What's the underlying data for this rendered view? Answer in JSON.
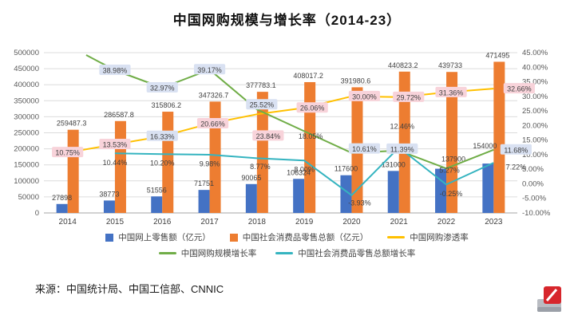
{
  "title": "中国网购规模与增长率（2014-23）",
  "source": "来源：中国统计局、中国工信部、CNNIC",
  "legend": {
    "rows": [
      [
        {
          "label": "中国网上零售额（亿元）",
          "type": "bar",
          "color": "#4472c4"
        },
        {
          "label": "中国社会消费品零售总额（亿元）",
          "type": "bar",
          "color": "#ed7d31"
        },
        {
          "label": "中国网购渗透率",
          "type": "line",
          "color": "#ffc000"
        }
      ],
      [
        {
          "label": "中国网购规模增长率",
          "type": "line",
          "color": "#70ad47"
        },
        {
          "label": "中国社会消费品零售总额增长率",
          "type": "line",
          "color": "#35b4c0"
        }
      ]
    ]
  },
  "chart_data": {
    "type": "combo-bar-line",
    "title": "中国网购规模与增长率（2014-23）",
    "categories": [
      "2014",
      "2015",
      "2016",
      "2017",
      "2018",
      "2019",
      "2020",
      "2021",
      "2022",
      "2023"
    ],
    "left_axis": {
      "min": 0,
      "max": 500000,
      "step": 50000,
      "tick_labels": [
        "500000",
        "450000",
        "400000",
        "350000",
        "300000",
        "250000",
        "200000",
        "150000",
        "100000",
        "50000",
        "0"
      ]
    },
    "right_axis": {
      "min": -10,
      "max": 45,
      "step": 5,
      "tick_labels": [
        "45.00%",
        "40.00%",
        "35.00%",
        "30.00%",
        "25.00%",
        "20.00%",
        "15.00%",
        "10.00%",
        "5.00%",
        "0.00%",
        "-5.00%",
        "-10.00%"
      ]
    },
    "grid": true,
    "bar_series": [
      {
        "name": "中国网上零售额（亿元）",
        "color": "#4472c4",
        "values": [
          27898,
          38773,
          51556,
          71751,
          90065,
          106324,
          117600,
          131000,
          137900,
          154000
        ],
        "labels": [
          "27898",
          "38773",
          "51556",
          "71751",
          "90065",
          "106324",
          "117600",
          "131000",
          "137900",
          "154000"
        ]
      },
      {
        "name": "中国社会消费品零售总额（亿元）",
        "color": "#ed7d31",
        "values": [
          259487.3,
          286587.8,
          315806.2,
          347326.7,
          377783.1,
          408017.2,
          391980.6,
          440823.2,
          439733,
          471495
        ],
        "labels": [
          "259487.3",
          "286587.8",
          "315806.2",
          "347326.7",
          "377783.1",
          "408017.2",
          "391980.6",
          "440823.2",
          "439733",
          "471495"
        ]
      }
    ],
    "line_series": [
      {
        "name": "中国网购渗透率",
        "color": "#ffc000",
        "axis": "right",
        "values": [
          10.75,
          13.53,
          16.33,
          20.66,
          23.84,
          26.06,
          30.0,
          29.72,
          31.36,
          32.66
        ],
        "labels": [
          {
            "text": "10.75%",
            "box": "pink"
          },
          {
            "text": "13.53%",
            "box": "pink"
          },
          {
            "text": "16.33%",
            "box": "lavender"
          },
          {
            "text": "20.66%",
            "box": "pink"
          },
          {
            "text": "23.84%",
            "box": "pink"
          },
          {
            "text": "26.06%",
            "box": "pink"
          },
          {
            "text": "30.00%",
            "box": "pink"
          },
          {
            "text": "29.72%",
            "box": "pink"
          },
          {
            "text": "31.36%",
            "box": "pink"
          },
          {
            "text": "32.66%",
            "box": "pink"
          }
        ]
      },
      {
        "name": "中国网购规模增长率",
        "color": "#70ad47",
        "axis": "right",
        "values": [
          null,
          38.98,
          32.97,
          39.17,
          25.52,
          18.05,
          10.61,
          11.39,
          5.27,
          11.68
        ],
        "labels": [
          null,
          {
            "text": "38.98%",
            "box": "lavender"
          },
          {
            "text": "32.97%",
            "box": "lavender"
          },
          {
            "text": "39.17%",
            "box": "lavender"
          },
          {
            "text": "25.52%",
            "box": "lavender"
          },
          {
            "text": "18.05%",
            "box": null
          },
          {
            "text": "10.61%",
            "box": "lavender"
          },
          {
            "text": "11.39%",
            "box": "lavender"
          },
          {
            "text": "5.27%",
            "box": null
          },
          {
            "text": "11.68%",
            "box": "lavender"
          }
        ]
      },
      {
        "name": "中国社会消费品零售总额增长率",
        "color": "#35b4c0",
        "axis": "right",
        "values": [
          null,
          10.44,
          10.2,
          9.98,
          8.77,
          8.0,
          -3.93,
          12.46,
          -0.25,
          7.22
        ],
        "labels": [
          null,
          {
            "text": "10.44%",
            "box": null
          },
          {
            "text": "10.20%",
            "box": null
          },
          {
            "text": "9.98%",
            "box": null
          },
          {
            "text": "8.77%",
            "box": null
          },
          {
            "text": "8.00%",
            "box": null
          },
          {
            "text": "-3.93%",
            "box": null
          },
          {
            "text": "12.46%",
            "box": null
          },
          {
            "text": "-0.25%",
            "box": null
          },
          {
            "text": "7.22%",
            "box": null
          }
        ]
      }
    ],
    "label_box_colors": {
      "pink": "#f8d3da",
      "lavender": "#d9e1f2"
    },
    "legend_position": "bottom"
  }
}
